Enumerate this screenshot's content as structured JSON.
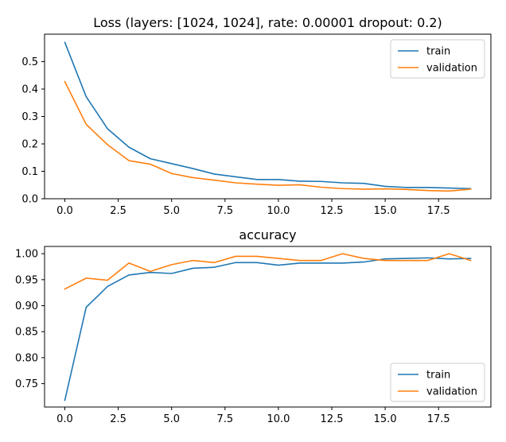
{
  "chart_data": [
    {
      "type": "line",
      "title": "Loss (layers: [1024, 1024], rate: 0.00001 dropout: 0.2)",
      "xlabel": "",
      "ylabel": "",
      "xlim": [
        -0.95,
        19.95
      ],
      "ylim": [
        0,
        0.6
      ],
      "xticks": [
        0.0,
        2.5,
        5.0,
        7.5,
        10.0,
        12.5,
        15.0,
        17.5
      ],
      "xtick_labels": [
        "0.0",
        "2.5",
        "5.0",
        "7.5",
        "10.0",
        "12.5",
        "15.0",
        "17.5"
      ],
      "yticks": [
        0.0,
        0.1,
        0.2,
        0.3,
        0.4,
        0.5
      ],
      "ytick_labels": [
        "0.0",
        "0.1",
        "0.2",
        "0.3",
        "0.4",
        "0.5"
      ],
      "legend": "top-right",
      "grid": false,
      "x": [
        0,
        1,
        2,
        3,
        4,
        5,
        6,
        7,
        8,
        9,
        10,
        11,
        12,
        13,
        14,
        15,
        16,
        17,
        18,
        19
      ],
      "series": [
        {
          "name": "train",
          "color": "#1f77b4",
          "values": [
            0.57,
            0.372,
            0.255,
            0.188,
            0.146,
            0.128,
            0.11,
            0.09,
            0.08,
            0.07,
            0.07,
            0.064,
            0.063,
            0.058,
            0.056,
            0.045,
            0.041,
            0.041,
            0.039,
            0.037
          ]
        },
        {
          "name": "validation",
          "color": "#ff7f0e",
          "values": [
            0.427,
            0.271,
            0.197,
            0.139,
            0.126,
            0.092,
            0.077,
            0.068,
            0.058,
            0.053,
            0.049,
            0.051,
            0.042,
            0.037,
            0.035,
            0.036,
            0.034,
            0.03,
            0.028,
            0.035
          ]
        }
      ]
    },
    {
      "type": "line",
      "title": "accuracy",
      "xlabel": "",
      "ylabel": "",
      "xlim": [
        -0.95,
        19.95
      ],
      "ylim": [
        0.705,
        1.014
      ],
      "xticks": [
        0.0,
        2.5,
        5.0,
        7.5,
        10.0,
        12.5,
        15.0,
        17.5
      ],
      "xtick_labels": [
        "0.0",
        "2.5",
        "5.0",
        "7.5",
        "10.0",
        "12.5",
        "15.0",
        "17.5"
      ],
      "yticks": [
        0.75,
        0.8,
        0.85,
        0.9,
        0.95,
        1.0
      ],
      "ytick_labels": [
        "0.75",
        "0.80",
        "0.85",
        "0.90",
        "0.95",
        "1.00"
      ],
      "legend": "bottom-right",
      "grid": false,
      "x": [
        0,
        1,
        2,
        3,
        4,
        5,
        6,
        7,
        8,
        9,
        10,
        11,
        12,
        13,
        14,
        15,
        16,
        17,
        18,
        19
      ],
      "series": [
        {
          "name": "train",
          "color": "#1f77b4",
          "values": [
            0.718,
            0.897,
            0.937,
            0.959,
            0.964,
            0.962,
            0.972,
            0.974,
            0.983,
            0.983,
            0.978,
            0.982,
            0.982,
            0.982,
            0.984,
            0.99,
            0.991,
            0.992,
            0.99,
            0.991
          ]
        },
        {
          "name": "validation",
          "color": "#ff7f0e",
          "values": [
            0.932,
            0.953,
            0.949,
            0.982,
            0.966,
            0.979,
            0.987,
            0.983,
            0.995,
            0.995,
            0.991,
            0.987,
            0.987,
            1.0,
            0.991,
            0.987,
            0.987,
            0.987,
            1.0,
            0.987
          ]
        }
      ]
    }
  ]
}
